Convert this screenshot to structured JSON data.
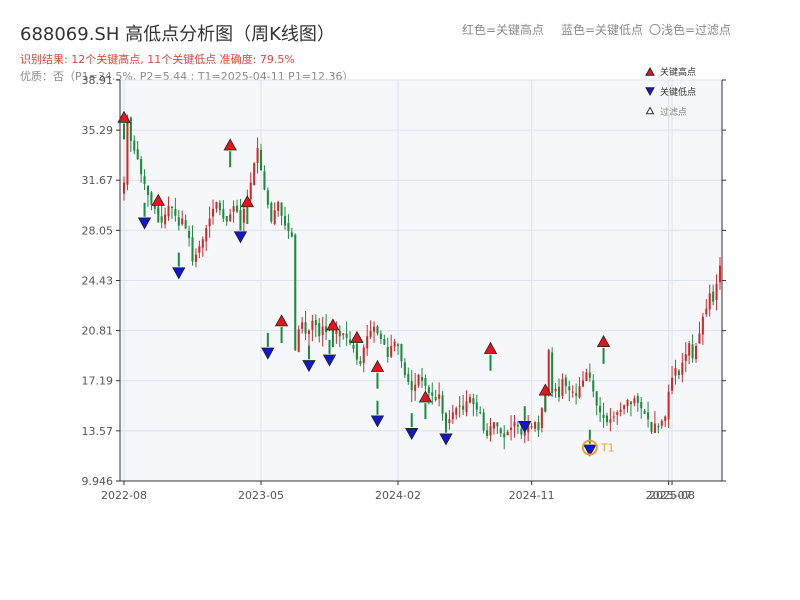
{
  "header": {
    "title": "688069.SH 高低点分析图（周K线图）",
    "result": "识别结果: 12个关键高点, 11个关键低点  准确度: 79.5%",
    "quality": "优质：否（P1=34.5%, P2=5.44 ; T1=2025-04-11 P1=12.36）",
    "legend_red": "红色=关键高点",
    "legend_blue": "蓝色=关键低点",
    "legend_light": "〇浅色=过滤点"
  },
  "legend": {
    "high": "关键高点",
    "low": "关键低点",
    "filtered": "过滤点"
  },
  "colors": {
    "up": "#d62728",
    "down": "#1a8c3c",
    "high_marker": "#e8141c",
    "low_marker": "#1018c8",
    "t1_ring": "#f0a030",
    "plot_bg": "#f5f7fa",
    "grid": "#dde3ea"
  },
  "chart_data": {
    "type": "candlestick",
    "ylim": [
      9.946,
      38.91
    ],
    "y_ticks": [
      9.946,
      13.57,
      17.19,
      20.81,
      24.43,
      28.05,
      31.67,
      35.29,
      38.91
    ],
    "y_tick_labels": [
      "9.946",
      "13.57",
      "17.19",
      "20.81",
      "24.43",
      "28.05",
      "31.67",
      "35.29",
      "38.91"
    ],
    "x_ticks": [
      "2022-08",
      "2023-05",
      "2024-02",
      "2024-11",
      "2025-07",
      "2025-08"
    ],
    "x_tick_index": [
      0,
      40,
      80,
      119,
      159,
      160
    ],
    "x_tick_text": [
      "2022-08",
      "2023-05",
      "2024-02",
      "2024-11",
      "2025-07",
      "2025-08"
    ],
    "closes": [
      31.5,
      36.2,
      34.5,
      33.8,
      33.2,
      32.1,
      31.4,
      30.6,
      29.9,
      29.6,
      29.2,
      28.6,
      29.2,
      29.8,
      29.7,
      29.1,
      28.4,
      28.9,
      28.2,
      27.5,
      25.8,
      26.3,
      26.9,
      27.4,
      28.2,
      28.9,
      29.6,
      30.1,
      29.5,
      28.9,
      28.7,
      29.2,
      29.8,
      29.4,
      28.8,
      29.6,
      30.4,
      31.5,
      32.9,
      34.0,
      32.4,
      31.0,
      29.9,
      28.7,
      29.5,
      30.1,
      29.1,
      28.4,
      28.0,
      27.6,
      19.4,
      20.9,
      21.4,
      20.6,
      20.8,
      21.5,
      21.2,
      20.4,
      21.1,
      20.7,
      20.9,
      20.6,
      20.8,
      20.4,
      20.6,
      20.3,
      19.9,
      19.5,
      18.8,
      18.4,
      19.6,
      20.4,
      20.8,
      21.1,
      20.6,
      20.2,
      19.8,
      18.9,
      19.7,
      20.0,
      19.7,
      18.6,
      17.6,
      17.1,
      16.5,
      16.9,
      17.6,
      17.2,
      16.8,
      16.3,
      16.1,
      15.8,
      16.2,
      14.8,
      14.0,
      14.4,
      14.9,
      15.2,
      15.4,
      15.1,
      15.7,
      16.0,
      15.5,
      15.1,
      14.9,
      13.6,
      13.2,
      13.9,
      14.2,
      13.9,
      13.4,
      13.1,
      13.5,
      13.8,
      14.2,
      13.9,
      13.3,
      13.6,
      14.1,
      13.8,
      14.2,
      13.6,
      15.2,
      16.4,
      19.4,
      16.3,
      16.6,
      16.0,
      17.3,
      16.8,
      16.5,
      16.4,
      16.1,
      16.8,
      17.2,
      17.8,
      17.4,
      16.4,
      15.4,
      14.9,
      14.5,
      14.2,
      14.4,
      14.6,
      14.9,
      15.1,
      15.4,
      15.8,
      15.5,
      15.9,
      15.6,
      15.2,
      14.8,
      14.4,
      13.5,
      14.1,
      13.9,
      14.3,
      14.6,
      16.4,
      17.4,
      18.1,
      17.6,
      18.5,
      19.1,
      19.9,
      18.8,
      19.7,
      20.6,
      21.8,
      22.4,
      23.5,
      22.9,
      24.2,
      25.5
    ],
    "key_highs": [
      [
        0,
        36.2
      ],
      [
        10,
        30.2
      ],
      [
        31,
        34.2
      ],
      [
        36,
        30.1
      ],
      [
        46,
        21.5
      ],
      [
        61,
        21.2
      ],
      [
        68,
        20.3
      ],
      [
        74,
        18.2
      ],
      [
        88,
        16.0
      ],
      [
        107,
        19.5
      ],
      [
        123,
        16.5
      ],
      [
        140,
        20.0
      ]
    ],
    "key_lows": [
      [
        6,
        28.6
      ],
      [
        16,
        25.0
      ],
      [
        34,
        27.6
      ],
      [
        42,
        19.2
      ],
      [
        54,
        18.3
      ],
      [
        60,
        18.7
      ],
      [
        74,
        14.3
      ],
      [
        84,
        13.4
      ],
      [
        94,
        13.0
      ],
      [
        117,
        13.9
      ],
      [
        136,
        12.2
      ]
    ],
    "t1": {
      "index": 136,
      "value": 12.36,
      "label": "T1"
    }
  }
}
